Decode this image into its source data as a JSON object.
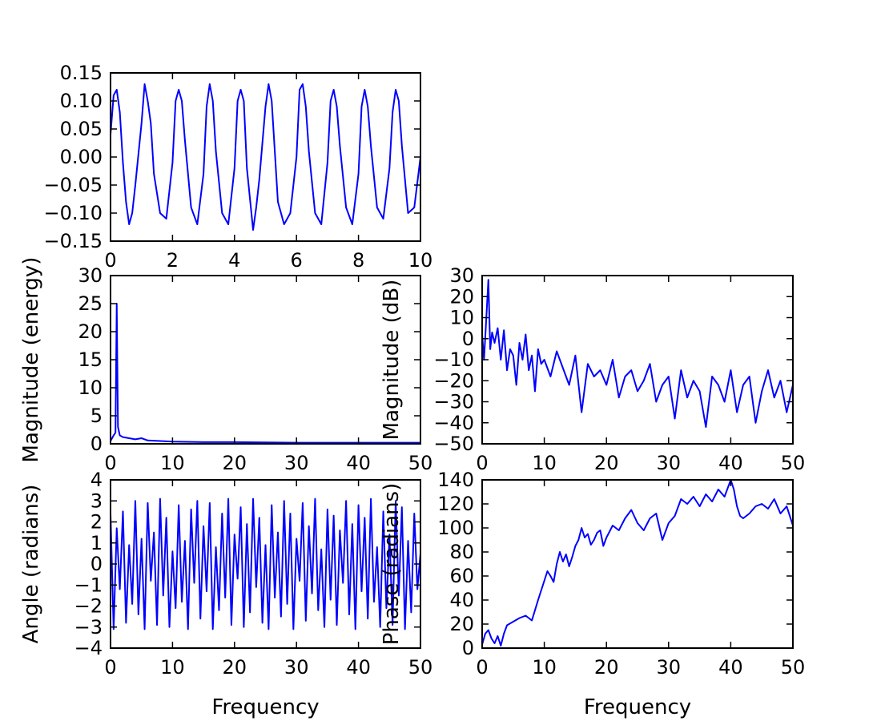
{
  "figure": {
    "background": "#ffffff",
    "line_color": "#0000ff"
  },
  "chart_data": [
    {
      "id": "signal",
      "type": "line",
      "title": "",
      "xlabel": "",
      "ylabel": "",
      "xlim": [
        0,
        10
      ],
      "ylim": [
        -0.15,
        0.15
      ],
      "xticks": [
        0,
        2,
        4,
        6,
        8,
        10
      ],
      "xtick_labels": [
        "0",
        "2",
        "4",
        "6",
        "8",
        "10"
      ],
      "yticks": [
        -0.15,
        -0.1,
        -0.05,
        0,
        0.05,
        0.1,
        0.15
      ],
      "ytick_labels": [
        "−0.15",
        "−0.10",
        "−0.05",
        "0.00",
        "0.05",
        "0.10",
        "0.15"
      ],
      "grid": false,
      "legend": "none",
      "x": [
        0,
        0.1,
        0.2,
        0.3,
        0.4,
        0.5,
        0.6,
        0.7,
        0.8,
        1.0,
        1.1,
        1.2,
        1.3,
        1.4,
        1.6,
        1.8,
        2.0,
        2.1,
        2.2,
        2.3,
        2.4,
        2.6,
        2.8,
        3.0,
        3.1,
        3.2,
        3.3,
        3.4,
        3.6,
        3.8,
        4.0,
        4.1,
        4.2,
        4.3,
        4.4,
        4.6,
        4.7,
        4.8,
        5.0,
        5.1,
        5.2,
        5.3,
        5.4,
        5.6,
        5.8,
        6.0,
        6.1,
        6.2,
        6.3,
        6.4,
        6.6,
        6.8,
        7.0,
        7.1,
        7.2,
        7.3,
        7.4,
        7.6,
        7.8,
        8.0,
        8.1,
        8.2,
        8.3,
        8.4,
        8.6,
        8.8,
        9.0,
        9.1,
        9.2,
        9.3,
        9.4,
        9.6,
        9.8,
        10.0
      ],
      "y": [
        0.04,
        0.11,
        0.12,
        0.08,
        -0.01,
        -0.08,
        -0.12,
        -0.1,
        -0.05,
        0.06,
        0.13,
        0.1,
        0.06,
        -0.03,
        -0.1,
        -0.11,
        -0.01,
        0.1,
        0.12,
        0.1,
        0.03,
        -0.09,
        -0.12,
        -0.03,
        0.09,
        0.13,
        0.1,
        0.01,
        -0.1,
        -0.12,
        -0.02,
        0.1,
        0.12,
        0.1,
        -0.02,
        -0.13,
        -0.09,
        -0.04,
        0.09,
        0.13,
        0.1,
        0.01,
        -0.08,
        -0.12,
        -0.1,
        0.0,
        0.12,
        0.13,
        0.09,
        0.01,
        -0.1,
        -0.12,
        -0.01,
        0.1,
        0.12,
        0.09,
        0.02,
        -0.09,
        -0.12,
        -0.03,
        0.09,
        0.12,
        0.09,
        0.02,
        -0.09,
        -0.11,
        -0.02,
        0.08,
        0.12,
        0.1,
        0.02,
        -0.1,
        -0.09,
        0.0
      ]
    },
    {
      "id": "magnitude-energy",
      "type": "line",
      "title": "",
      "xlabel": "",
      "ylabel": "Magnitude (energy)",
      "xlim": [
        0,
        50
      ],
      "ylim": [
        0,
        30
      ],
      "xticks": [
        0,
        10,
        20,
        30,
        40,
        50
      ],
      "xtick_labels": [
        "0",
        "10",
        "20",
        "30",
        "40",
        "50"
      ],
      "yticks": [
        0,
        5,
        10,
        15,
        20,
        25,
        30
      ],
      "ytick_labels": [
        "0",
        "5",
        "10",
        "15",
        "20",
        "25",
        "30"
      ],
      "grid": false,
      "legend": "none",
      "x": [
        0,
        0.5,
        0.8,
        1.0,
        1.2,
        1.5,
        2,
        3,
        4,
        5,
        6,
        8,
        10,
        15,
        20,
        30,
        40,
        50
      ],
      "y": [
        0.5,
        1.5,
        2.0,
        25,
        3,
        1.5,
        1.2,
        1.0,
        0.8,
        1.0,
        0.6,
        0.5,
        0.4,
        0.3,
        0.3,
        0.2,
        0.2,
        0.2
      ]
    },
    {
      "id": "magnitude-db",
      "type": "line",
      "title": "",
      "xlabel": "",
      "ylabel": "Magnitude (dB)",
      "xlim": [
        0,
        50
      ],
      "ylim": [
        -50,
        30
      ],
      "xticks": [
        0,
        10,
        20,
        30,
        40,
        50
      ],
      "xtick_labels": [
        "0",
        "10",
        "20",
        "30",
        "40",
        "50"
      ],
      "yticks": [
        -50,
        -40,
        -30,
        -20,
        -10,
        0,
        10,
        20,
        30
      ],
      "ytick_labels": [
        "−50",
        "−40",
        "−30",
        "−20",
        "−10",
        "0",
        "10",
        "20",
        "30"
      ],
      "grid": false,
      "legend": "none",
      "x": [
        0,
        0.3,
        0.6,
        1.0,
        1.3,
        1.6,
        2.0,
        2.5,
        3,
        3.5,
        4,
        4.5,
        5,
        5.5,
        6,
        6.5,
        7,
        7.5,
        8,
        8.5,
        9,
        9.5,
        10,
        11,
        12,
        13,
        14,
        15,
        16,
        17,
        18,
        19,
        20,
        21,
        22,
        23,
        24,
        25,
        26,
        27,
        28,
        29,
        30,
        31,
        32,
        33,
        34,
        35,
        36,
        37,
        38,
        39,
        40,
        41,
        42,
        43,
        44,
        45,
        46,
        47,
        48,
        49,
        50
      ],
      "y": [
        2,
        -10,
        6,
        28,
        -5,
        3,
        -2,
        5,
        -10,
        4,
        -15,
        -5,
        -8,
        -22,
        -2,
        -10,
        2,
        -15,
        -8,
        -25,
        -5,
        -12,
        -10,
        -18,
        -6,
        -14,
        -22,
        -8,
        -35,
        -12,
        -18,
        -15,
        -22,
        -10,
        -28,
        -18,
        -15,
        -25,
        -20,
        -12,
        -30,
        -22,
        -18,
        -38,
        -15,
        -28,
        -20,
        -25,
        -42,
        -18,
        -22,
        -30,
        -15,
        -35,
        -22,
        -18,
        -40,
        -25,
        -15,
        -28,
        -20,
        -35,
        -22
      ]
    },
    {
      "id": "angle",
      "type": "line",
      "title": "",
      "xlabel": "Frequency",
      "ylabel": "Angle (radians)",
      "xlim": [
        0,
        50
      ],
      "ylim": [
        -4,
        4
      ],
      "xticks": [
        0,
        10,
        20,
        30,
        40,
        50
      ],
      "xtick_labels": [
        "0",
        "10",
        "20",
        "30",
        "40",
        "50"
      ],
      "yticks": [
        -4,
        -3,
        -2,
        -1,
        0,
        1,
        2,
        3,
        4
      ],
      "ytick_labels": [
        "−4",
        "−3",
        "−2",
        "−1",
        "0",
        "1",
        "2",
        "3",
        "4"
      ],
      "grid": false,
      "legend": "none",
      "x": [
        0,
        0.5,
        1,
        1.5,
        2,
        2.5,
        3,
        3.5,
        4,
        4.5,
        5,
        5.5,
        6,
        6.5,
        7,
        7.5,
        8,
        8.5,
        9,
        9.5,
        10,
        10.5,
        11,
        11.5,
        12,
        12.5,
        13,
        13.5,
        14,
        14.5,
        15,
        15.5,
        16,
        16.5,
        17,
        17.5,
        18,
        18.5,
        19,
        19.5,
        20,
        20.5,
        21,
        21.5,
        22,
        22.5,
        23,
        23.5,
        24,
        24.5,
        25,
        25.5,
        26,
        26.5,
        27,
        27.5,
        28,
        28.5,
        29,
        29.5,
        30,
        30.5,
        31,
        31.5,
        32,
        32.5,
        33,
        33.5,
        34,
        34.5,
        35,
        35.5,
        36,
        36.5,
        37,
        37.5,
        38,
        38.5,
        39,
        39.5,
        40,
        40.5,
        41,
        41.5,
        42,
        42.5,
        43,
        43.5,
        44,
        44.5,
        45,
        45.5,
        46,
        46.5,
        47,
        47.5,
        48,
        48.5,
        49,
        49.5,
        50
      ],
      "y": [
        2.4,
        -3.1,
        1.7,
        -1.2,
        2.5,
        -2.8,
        0.9,
        -1.9,
        3.0,
        -2.4,
        1.2,
        -3.1,
        2.9,
        -0.8,
        1.5,
        -2.9,
        3.1,
        -1.5,
        2.2,
        -3.0,
        0.6,
        -2.1,
        2.8,
        -1.8,
        1.1,
        -3.1,
        2.6,
        -0.9,
        3.0,
        -2.6,
        1.8,
        -1.3,
        2.9,
        -3.1,
        0.8,
        -2.2,
        2.4,
        -1.6,
        3.1,
        -2.9,
        1.4,
        -0.7,
        2.7,
        -3.0,
        1.9,
        -2.3,
        3.1,
        -1.1,
        2.2,
        -2.8,
        0.9,
        -3.1,
        2.8,
        -1.6,
        1.5,
        -2.5,
        3.0,
        -1.9,
        2.4,
        -3.1,
        1.2,
        -0.8,
        2.9,
        -2.7,
        1.8,
        -1.4,
        3.1,
        -2.2,
        0.7,
        -3.0,
        2.6,
        -1.7,
        2.3,
        -2.9,
        1.6,
        -0.9,
        3.0,
        -2.4,
        1.9,
        -3.1,
        2.8,
        -1.3,
        2.2,
        -2.6,
        3.1,
        -1.8,
        0.8,
        -3.0,
        2.5,
        -2.1,
        1.4,
        -2.9,
        3.0,
        -1.5,
        2.7,
        -3.1,
        1.1,
        -2.3,
        2.4,
        -1.2,
        0.5
      ]
    },
    {
      "id": "phase",
      "type": "line",
      "title": "",
      "xlabel": "Frequency",
      "ylabel": "Phase (radians)",
      "xlim": [
        0,
        50
      ],
      "ylim": [
        0,
        140
      ],
      "xticks": [
        0,
        10,
        20,
        30,
        40,
        50
      ],
      "xtick_labels": [
        "0",
        "10",
        "20",
        "30",
        "40",
        "50"
      ],
      "yticks": [
        0,
        20,
        40,
        60,
        80,
        100,
        120,
        140
      ],
      "ytick_labels": [
        "0",
        "20",
        "40",
        "60",
        "80",
        "100",
        "120",
        "140"
      ],
      "grid": false,
      "legend": "none",
      "x": [
        0,
        0.5,
        1,
        1.5,
        2,
        2.5,
        3,
        3.5,
        4,
        5,
        6,
        7,
        8,
        9,
        10,
        10.5,
        11,
        11.5,
        12,
        12.5,
        13,
        13.5,
        14,
        14.5,
        15,
        15.5,
        16,
        16.5,
        17,
        17.5,
        18,
        18.5,
        19,
        19.5,
        20,
        21,
        22,
        23,
        24,
        25,
        26,
        27,
        28,
        29,
        30,
        31,
        32,
        33,
        34,
        35,
        36,
        37,
        38,
        39,
        40,
        40.5,
        41,
        41.5,
        42,
        43,
        44,
        45,
        46,
        47,
        48,
        49,
        50
      ],
      "y": [
        3,
        12,
        15,
        8,
        4,
        10,
        2,
        12,
        19,
        22,
        25,
        27,
        23,
        40,
        56,
        64,
        60,
        55,
        70,
        80,
        72,
        78,
        68,
        76,
        85,
        90,
        100,
        92,
        95,
        86,
        90,
        96,
        98,
        85,
        92,
        102,
        98,
        108,
        115,
        104,
        98,
        108,
        112,
        90,
        104,
        110,
        124,
        120,
        126,
        118,
        128,
        122,
        132,
        126,
        140,
        132,
        118,
        110,
        108,
        112,
        118,
        120,
        116,
        124,
        112,
        118,
        102
      ]
    }
  ]
}
